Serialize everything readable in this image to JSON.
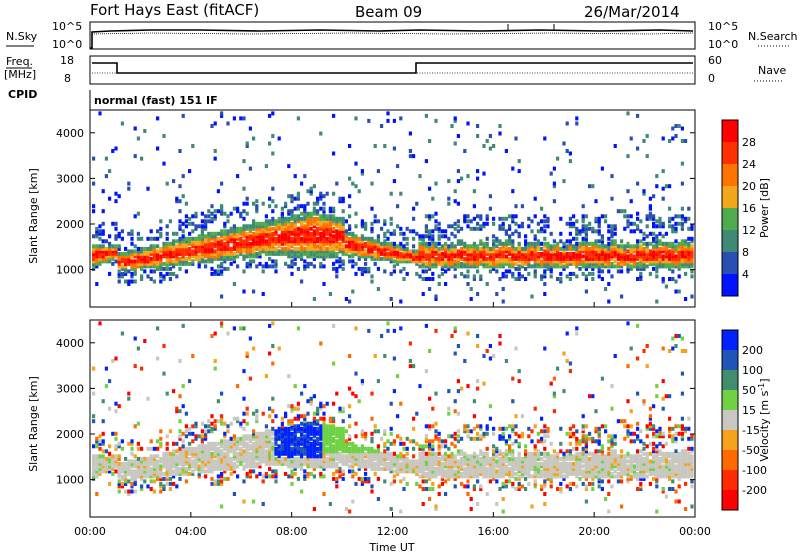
{
  "header": {
    "station": "Fort Hays East (fitACF)",
    "beam": "Beam 09",
    "date": "26/Mar/2014"
  },
  "top_panels": {
    "nsky_label": "N.Sky",
    "nsearch_label": "N.Search",
    "nsky_ticks": [
      "10^5",
      "10^0"
    ],
    "nsearch_ticks": [
      "10^5",
      "10^0"
    ],
    "freq_label_1": "Freq.",
    "freq_label_2": "[MHz]",
    "freq_ticks": [
      "18",
      "8"
    ],
    "nave_label": "Nave",
    "nave_ticks": [
      "60",
      "0"
    ],
    "cpid_label": "CPID",
    "cpid_text": "normal (fast) 151 IF"
  },
  "chart_data": [
    {
      "type": "heatmap",
      "title": "",
      "xlabel": "",
      "ylabel": "Slant Range [km]",
      "x_ticks": [
        "00:00",
        "04:00",
        "08:00",
        "12:00",
        "16:00",
        "20:00",
        "00:00"
      ],
      "x_range_hours": [
        0,
        24
      ],
      "y_ticks": [
        1000,
        2000,
        3000,
        4000
      ],
      "y_range_km": [
        180,
        4500
      ],
      "colorbar": {
        "label": "Power [dB]",
        "ticks": [
          "4",
          "8",
          "12",
          "16",
          "20",
          "24",
          "28"
        ],
        "colors": [
          "#0012ff",
          "#2a4fb2",
          "#3f8a76",
          "#4eab4e",
          "#f2a81a",
          "#ff7400",
          "#ff3000",
          "#ff0000"
        ]
      },
      "description_bands": [
        {
          "hours": [
            0,
            1
          ],
          "range_km": [
            1000,
            1800
          ],
          "level": "mixed"
        },
        {
          "hours": [
            1,
            13
          ],
          "range_km": [
            1000,
            2600
          ],
          "level": "high"
        },
        {
          "hours": [
            13,
            24
          ],
          "range_km": [
            1050,
            1700
          ],
          "level": "high"
        }
      ]
    },
    {
      "type": "heatmap",
      "title": "",
      "xlabel": "Time UT",
      "ylabel": "Slant Range [km]",
      "x_ticks": [
        "00:00",
        "04:00",
        "08:00",
        "12:00",
        "16:00",
        "20:00",
        "00:00"
      ],
      "x_range_hours": [
        0,
        24
      ],
      "y_ticks": [
        1000,
        2000,
        3000,
        4000
      ],
      "y_range_km": [
        180,
        4500
      ],
      "colorbar": {
        "label_main": "Velocity",
        "label_unit": "[m s",
        "label_exp": "-1",
        "label_close": "]",
        "ticks": [
          "200",
          "100",
          "50",
          "15",
          "-15",
          "-50",
          "-100",
          "-200"
        ],
        "colors": [
          "#0022ff",
          "#1f55b8",
          "#3f8e6e",
          "#6fd244",
          "#c8c8c0",
          "#f5a31a",
          "#ff6a00",
          "#ff2a00",
          "#ff0000"
        ]
      }
    }
  ]
}
